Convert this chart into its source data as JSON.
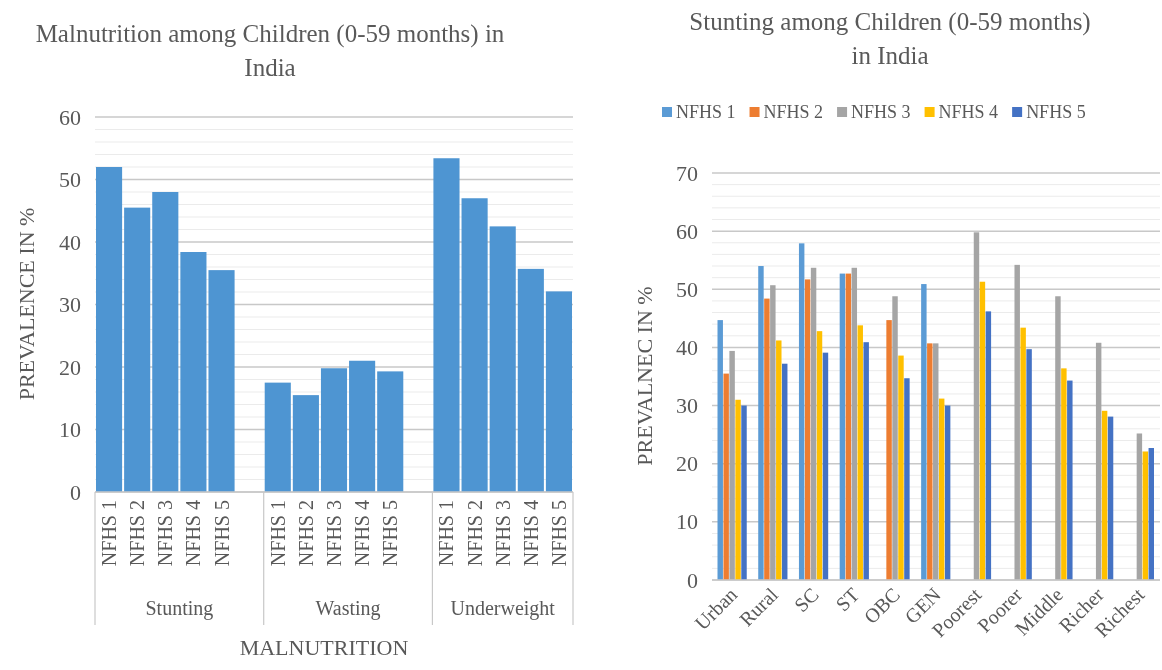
{
  "chart_data": [
    {
      "type": "bar",
      "title": "Malnutrition among Children (0-59 months) in India",
      "xlabel": "MALNUTRITION",
      "ylabel": "PREVALENCE IN %",
      "categories": [
        "NFHS 1",
        "NFHS 2",
        "NFHS 3",
        "NFHS 4",
        "NFHS 5",
        null,
        "NFHS 1",
        "NFHS 2",
        "NFHS 3",
        "NFHS 4",
        "NFHS 5",
        null,
        "NFHS 1",
        "NFHS 2",
        "NFHS 3",
        "NFHS 4",
        "NFHS 5"
      ],
      "values": [
        52,
        45.5,
        48,
        38.4,
        35.5,
        null,
        17.5,
        15.5,
        19.8,
        21,
        19.3,
        null,
        53.4,
        47,
        42.5,
        35.7,
        32.1
      ],
      "color": "#4e95d2",
      "annotations": [
        "Stunting",
        "Wasting",
        "Underweight"
      ],
      "ylim": [
        0,
        60
      ],
      "yticks": [
        0,
        {
          "value": 2,
          "label": null
        },
        {
          "value": 4,
          "label": null
        },
        {
          "value": 6,
          "label": null
        },
        {
          "value": 8,
          "label": null
        },
        10,
        {
          "value": 12,
          "label": null
        },
        {
          "value": 14,
          "label": null
        },
        {
          "value": 16,
          "label": null
        },
        {
          "value": 18,
          "label": null
        },
        20,
        {
          "value": 22,
          "label": null
        },
        {
          "value": 24,
          "label": null
        },
        {
          "value": 26,
          "label": null
        },
        {
          "value": 28,
          "label": null
        },
        30,
        {
          "value": 32,
          "label": null
        },
        {
          "value": 34,
          "label": null
        },
        {
          "value": 36,
          "label": null
        },
        {
          "value": 38,
          "label": null
        },
        40,
        {
          "value": 42,
          "label": null
        },
        {
          "value": 44,
          "label": null
        },
        {
          "value": 46,
          "label": null
        },
        {
          "value": 48,
          "label": null
        },
        50,
        {
          "value": 52,
          "label": null
        },
        {
          "value": 54,
          "label": null
        },
        {
          "value": 56,
          "label": null
        },
        {
          "value": 58,
          "label": null
        },
        60
      ],
      "grid": "y"
    },
    {
      "type": "bar",
      "title": "Stunting among Children (0-59 months) in India",
      "ylabel": "PREVALNEC IN %",
      "categories": [
        "Urban",
        "Rural",
        "SC",
        "ST",
        "OBC",
        "GEN",
        "Poorest",
        "Poorer",
        "Middle",
        "Richer",
        "Richest"
      ],
      "series": [
        {
          "name": "NFHS 1",
          "color": "#5b9bd5",
          "values": [
            44.7,
            54,
            57.9,
            52.7,
            null,
            50.9,
            null,
            null,
            null,
            null,
            null
          ]
        },
        {
          "name": "NFHS 2",
          "color": "#ed7d31",
          "values": [
            35.5,
            48.4,
            51.7,
            52.7,
            44.7,
            40.7,
            null,
            null,
            null,
            null,
            null
          ]
        },
        {
          "name": "NFHS 3",
          "color": "#a5a5a5",
          "values": [
            39.4,
            50.7,
            53.7,
            53.7,
            48.8,
            40.7,
            59.8,
            54.2,
            48.8,
            40.8,
            25.2
          ]
        },
        {
          "name": "NFHS 4",
          "color": "#ffc000",
          "values": [
            31,
            41.2,
            42.8,
            43.8,
            38.6,
            31.2,
            51.3,
            43.4,
            36.4,
            29.1,
            22.1
          ]
        },
        {
          "name": "NFHS 5",
          "color": "#4472c4",
          "values": [
            30,
            37.2,
            39.1,
            40.9,
            34.7,
            30,
            46.2,
            39.7,
            34.3,
            28.1,
            22.7
          ]
        }
      ],
      "ylim": [
        0,
        70
      ],
      "yticks": [
        0,
        {
          "value": 2,
          "label": null
        },
        {
          "value": 4,
          "label": null
        },
        {
          "value": 6,
          "label": null
        },
        {
          "value": 8,
          "label": null
        },
        10,
        {
          "value": 12,
          "label": null
        },
        {
          "value": 14,
          "label": null
        },
        {
          "value": 16,
          "label": null
        },
        {
          "value": 18,
          "label": null
        },
        20,
        {
          "value": 22,
          "label": null
        },
        {
          "value": 24,
          "label": null
        },
        {
          "value": 26,
          "label": null
        },
        {
          "value": 28,
          "label": null
        },
        30,
        {
          "value": 32,
          "label": null
        },
        {
          "value": 34,
          "label": null
        },
        {
          "value": 36,
          "label": null
        },
        {
          "value": 38,
          "label": null
        },
        40,
        {
          "value": 42,
          "label": null
        },
        {
          "value": 44,
          "label": null
        },
        {
          "value": 46,
          "label": null
        },
        {
          "value": 48,
          "label": null
        },
        50,
        {
          "value": 52,
          "label": null
        },
        {
          "value": 54,
          "label": null
        },
        {
          "value": 56,
          "label": null
        },
        {
          "value": 58,
          "label": null
        },
        60,
        {
          "value": 62,
          "label": null
        },
        {
          "value": 64,
          "label": null
        },
        {
          "value": 66,
          "label": null
        },
        {
          "value": 68,
          "label": null
        },
        70
      ],
      "grid": "y",
      "legend": "top"
    }
  ]
}
